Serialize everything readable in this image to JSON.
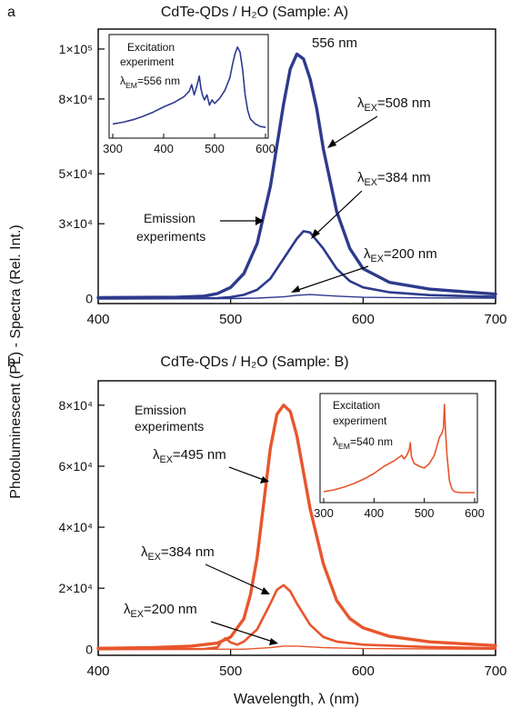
{
  "ylabel": "Photoluminescent (PL) - Spectra (Rel. Int.)",
  "xlabel": "Wavelength, λ (nm)",
  "chart_data": [
    {
      "type": "line",
      "panel_letter": "a",
      "title": "CdTe-QDs / H₂O (Sample: A)",
      "xlim": [
        400,
        700
      ],
      "ylim": [
        -2000,
        108000
      ],
      "xticks": [
        "400",
        "500",
        "600",
        "700"
      ],
      "yticks": [
        "0",
        "3×10⁴",
        "5×10⁴",
        "8×10⁴",
        "1×10⁵"
      ],
      "ytick_values": [
        0,
        30000,
        50000,
        80000,
        100000
      ],
      "grid": false,
      "color": "#2e3a8c",
      "series": [
        {
          "name": "λEX=508 nm",
          "x": [
            400,
            460,
            480,
            490,
            500,
            510,
            520,
            530,
            540,
            545,
            550,
            555,
            560,
            565,
            570,
            580,
            590,
            600,
            620,
            650,
            700
          ],
          "y": [
            400,
            600,
            1000,
            2000,
            4500,
            10000,
            22000,
            45000,
            78000,
            92000,
            98000,
            96000,
            88000,
            76000,
            60000,
            35000,
            20000,
            12000,
            6500,
            3800,
            1800
          ]
        },
        {
          "name": "λEX=384 nm",
          "x": [
            400,
            490,
            500,
            510,
            520,
            530,
            540,
            550,
            555,
            560,
            570,
            580,
            590,
            600,
            620,
            650,
            700
          ],
          "y": [
            0,
            200,
            600,
            1500,
            3500,
            8000,
            16000,
            24000,
            27000,
            26500,
            20000,
            12000,
            7000,
            4500,
            2500,
            1400,
            700
          ]
        },
        {
          "name": "λEX=200 nm",
          "x": [
            400,
            500,
            520,
            540,
            550,
            560,
            580,
            600,
            650,
            700
          ],
          "y": [
            0,
            0,
            200,
            700,
            1300,
            1600,
            1000,
            500,
            250,
            150
          ]
        }
      ],
      "annotations": [
        {
          "label": "556 nm"
        },
        {
          "label": "λEX=508 nm"
        },
        {
          "label": "λEX=384 nm"
        },
        {
          "label": "λEX=200 nm"
        },
        {
          "label_lines": [
            "Emission",
            "experiments"
          ]
        }
      ],
      "inset": {
        "title_lines": [
          "Excitation",
          "experiment",
          "λEM=556 nm"
        ],
        "xlim": [
          300,
          600
        ],
        "xticks": [
          "300",
          "400",
          "500",
          "600"
        ],
        "x": [
          300,
          320,
          340,
          360,
          380,
          400,
          420,
          440,
          450,
          455,
          460,
          465,
          470,
          473,
          476,
          480,
          485,
          490,
          495,
          500,
          510,
          520,
          530,
          535,
          540,
          545,
          550,
          555,
          560,
          565,
          570,
          580,
          590,
          600
        ],
        "y": [
          0.06,
          0.08,
          0.11,
          0.15,
          0.2,
          0.26,
          0.31,
          0.38,
          0.44,
          0.52,
          0.4,
          0.5,
          0.62,
          0.48,
          0.4,
          0.34,
          0.4,
          0.28,
          0.34,
          0.3,
          0.36,
          0.45,
          0.6,
          0.75,
          0.88,
          0.96,
          0.9,
          0.7,
          0.4,
          0.22,
          0.12,
          0.06,
          0.03,
          0.02
        ]
      }
    },
    {
      "type": "line",
      "panel_letter": "b",
      "title": "CdTe-QDs / H₂O (Sample: B)",
      "xlim": [
        400,
        700
      ],
      "ylim": [
        -2000,
        88000
      ],
      "xticks": [
        "400",
        "500",
        "600",
        "700"
      ],
      "yticks": [
        "0",
        "2×10⁴",
        "4×10⁴",
        "6×10⁴",
        "8×10⁴"
      ],
      "ytick_values": [
        0,
        20000,
        40000,
        60000,
        80000
      ],
      "grid": false,
      "color": "#e8552c",
      "series": [
        {
          "name": "λEX=495 nm",
          "x": [
            400,
            440,
            470,
            490,
            500,
            510,
            515,
            520,
            525,
            530,
            535,
            540,
            545,
            550,
            555,
            560,
            570,
            580,
            590,
            600,
            620,
            650,
            700
          ],
          "y": [
            300,
            500,
            1000,
            2000,
            4000,
            10000,
            18000,
            30000,
            48000,
            66000,
            77000,
            80000,
            78000,
            70000,
            58000,
            46000,
            28000,
            16000,
            10000,
            7000,
            4200,
            2400,
            1200
          ]
        },
        {
          "name": "λEX=384 nm",
          "x": [
            400,
            480,
            490,
            493,
            496,
            500,
            505,
            510,
            520,
            530,
            535,
            540,
            545,
            550,
            560,
            570,
            580,
            600,
            650,
            700
          ],
          "y": [
            0,
            100,
            600,
            2500,
            3600,
            2200,
            1500,
            2500,
            6500,
            15000,
            19500,
            21000,
            19000,
            15000,
            8000,
            4000,
            2500,
            1500,
            700,
            300
          ]
        },
        {
          "name": "λEX=200 nm",
          "x": [
            400,
            510,
            530,
            540,
            550,
            570,
            600,
            700
          ],
          "y": [
            0,
            0,
            500,
            1000,
            1000,
            500,
            200,
            0
          ]
        }
      ],
      "annotations": [
        {
          "label_lines": [
            "Emission",
            "experiments"
          ]
        },
        {
          "label": "λEX=495 nm"
        },
        {
          "label": "λEX=384 nm"
        },
        {
          "label": "λEX=200 nm"
        }
      ],
      "inset": {
        "title_lines": [
          "Excitation",
          "experiment",
          "λEM=540 nm"
        ],
        "xlim": [
          300,
          600
        ],
        "xticks": [
          "300",
          "400",
          "500",
          "600"
        ],
        "x": [
          300,
          320,
          340,
          360,
          380,
          400,
          420,
          440,
          455,
          460,
          465,
          470,
          472,
          474,
          476,
          480,
          490,
          500,
          510,
          520,
          525,
          530,
          535,
          538,
          540,
          542,
          545,
          550,
          555,
          560,
          570,
          580,
          600
        ],
        "y": [
          0.02,
          0.04,
          0.07,
          0.11,
          0.16,
          0.22,
          0.3,
          0.36,
          0.42,
          0.38,
          0.42,
          0.48,
          0.56,
          0.42,
          0.38,
          0.33,
          0.3,
          0.28,
          0.33,
          0.42,
          0.52,
          0.62,
          0.66,
          0.72,
          0.98,
          0.7,
          0.42,
          0.14,
          0.05,
          0.02,
          0.01,
          0.01,
          0.01
        ]
      }
    }
  ]
}
